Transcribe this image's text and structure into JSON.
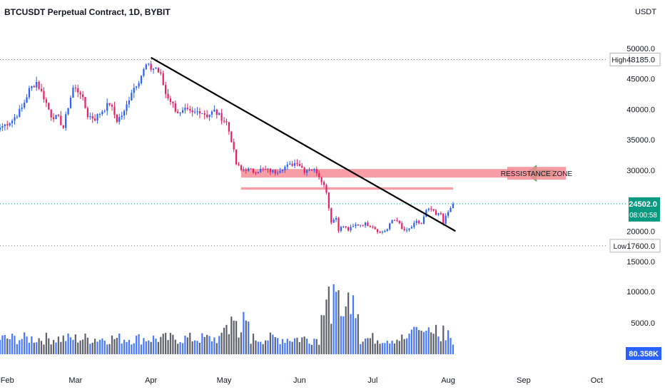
{
  "chart_data": {
    "type": "candlestick",
    "title": "BTCUSDT Perpetual Contract, 1D, BYBIT",
    "currency": "USDT",
    "price_axis": {
      "ticks": [
        "50000.0",
        "45000.0",
        "40000.0",
        "35000.0",
        "30000.0",
        "20000.0",
        "15000.0"
      ],
      "tick_values": [
        50000,
        45000,
        40000,
        35000,
        30000,
        20000,
        15000
      ],
      "range": [
        14000,
        52000
      ]
    },
    "volume_axis": {
      "ticks": [
        "10000.0",
        "5000.0"
      ],
      "tick_values": [
        10000,
        5000
      ],
      "range": [
        0,
        13000
      ]
    },
    "x_axis": {
      "labels": [
        "Feb",
        "Mar",
        "Apr",
        "May",
        "Jun",
        "Jul",
        "Aug",
        "Sep",
        "Oct"
      ],
      "label_days": [
        0,
        28,
        59,
        89,
        120,
        150,
        181,
        212,
        242
      ],
      "range_days": [
        -3,
        246
      ]
    },
    "high": {
      "label": "High",
      "value": "48185.0",
      "price": 48185
    },
    "low": {
      "label": "Low",
      "value": "17600.0",
      "price": 17600
    },
    "last": {
      "value": "24502.0",
      "countdown": "08:00:58",
      "price": 24502
    },
    "volume_last": {
      "value": "80.358K"
    },
    "close_anchors": [
      [
        -3,
        37000
      ],
      [
        2,
        38200
      ],
      [
        6,
        40200
      ],
      [
        9,
        43200
      ],
      [
        12,
        44500
      ],
      [
        15,
        42000
      ],
      [
        18,
        39000
      ],
      [
        21,
        38500
      ],
      [
        23,
        37000
      ],
      [
        25,
        40500
      ],
      [
        27,
        43500
      ],
      [
        30,
        42800
      ],
      [
        33,
        39000
      ],
      [
        36,
        38500
      ],
      [
        39,
        39800
      ],
      [
        42,
        41000
      ],
      [
        45,
        38200
      ],
      [
        48,
        39500
      ],
      [
        51,
        43000
      ],
      [
        54,
        44800
      ],
      [
        57,
        47200
      ],
      [
        59,
        46700
      ],
      [
        61,
        46800
      ],
      [
        63,
        45500
      ],
      [
        65,
        42600
      ],
      [
        67,
        41500
      ],
      [
        69,
        40000
      ],
      [
        71,
        39200
      ],
      [
        73,
        39800
      ],
      [
        76,
        39300
      ],
      [
        79,
        39800
      ],
      [
        82,
        39000
      ],
      [
        85,
        39700
      ],
      [
        88,
        38600
      ],
      [
        90,
        37800
      ],
      [
        92,
        35000
      ],
      [
        94,
        31000
      ],
      [
        96,
        30000
      ],
      [
        98,
        30200
      ],
      [
        101,
        29800
      ],
      [
        104,
        30100
      ],
      [
        107,
        30000
      ],
      [
        110,
        29700
      ],
      [
        113,
        30400
      ],
      [
        116,
        30800
      ],
      [
        119,
        31400
      ],
      [
        122,
        29900
      ],
      [
        124,
        30300
      ],
      [
        127,
        29800
      ],
      [
        129,
        28400
      ],
      [
        131,
        26600
      ],
      [
        132,
        23800
      ],
      [
        133,
        21600
      ],
      [
        135,
        22200
      ],
      [
        136,
        20300
      ],
      [
        138,
        20800
      ],
      [
        140,
        20200
      ],
      [
        143,
        21000
      ],
      [
        147,
        21200
      ],
      [
        150,
        20800
      ],
      [
        153,
        19700
      ],
      [
        156,
        20300
      ],
      [
        158,
        21800
      ],
      [
        160,
        21900
      ],
      [
        162,
        20300
      ],
      [
        164,
        20000
      ],
      [
        166,
        20700
      ],
      [
        168,
        21500
      ],
      [
        170,
        21200
      ],
      [
        172,
        23300
      ],
      [
        174,
        23600
      ],
      [
        176,
        22600
      ],
      [
        178,
        22900
      ],
      [
        179,
        21400
      ],
      [
        181,
        23100
      ],
      [
        182,
        23700
      ],
      [
        183,
        24502
      ]
    ],
    "trendline": {
      "from": [
        59,
        48500
      ],
      "to": [
        184,
        20000
      ]
    },
    "resistance_zone": {
      "label": "RESSISTANCE ZONE",
      "from_day": 96,
      "to_day": 208,
      "low": 28800,
      "high": 30200
    },
    "support_line": {
      "from_day": 96,
      "to_day": 183,
      "low": 26800,
      "high": 27200
    },
    "colors": {
      "up": "#2962ff",
      "down": "#e91e63",
      "trendline": "#000000",
      "zone": "#f48c97",
      "arrow": "#4caf50",
      "last_price": "#089981",
      "volume_up": "#2962ff",
      "volume_down": "#434651",
      "volume_label": "#2962ff",
      "grid_dotted": "#787b86"
    }
  }
}
